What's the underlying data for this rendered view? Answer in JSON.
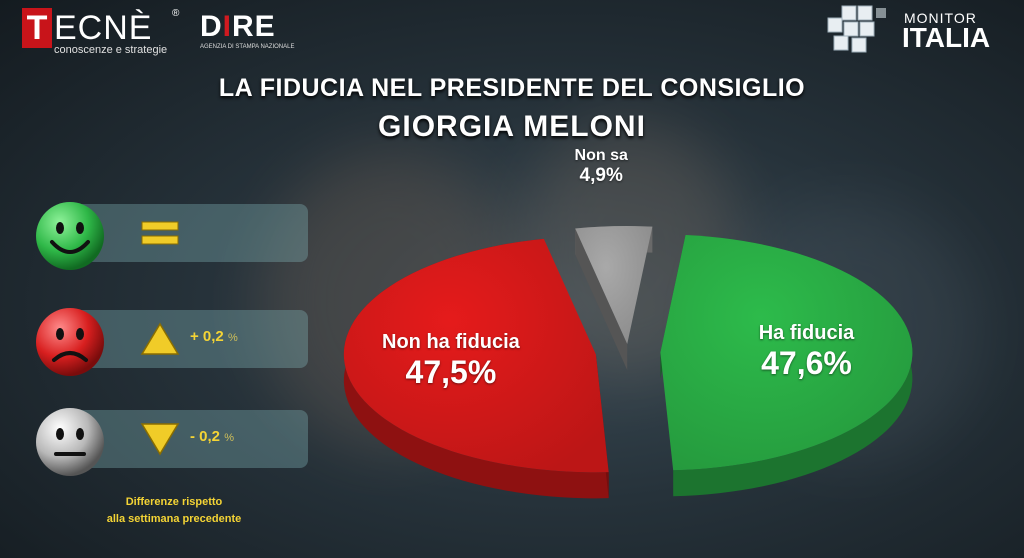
{
  "logos": {
    "tecne": {
      "first": "T",
      "rest": "ECNÈ",
      "reg": "®",
      "tagline": "conoscenze e strategie"
    },
    "dire": {
      "word_a": "D",
      "word_i": "I",
      "word_b": "RE",
      "tagline": "AGENZIA DI STAMPA NAZIONALE"
    },
    "monitor": {
      "line1": "MONITOR",
      "line2": "ITALIA"
    }
  },
  "title": {
    "line1": "LA FIDUCIA NEL PRESIDENTE DEL CONSIGLIO",
    "line2": "GIORGIA MELONI"
  },
  "legend": [
    {
      "face": "smile-green",
      "mark": "equal",
      "delta": "",
      "color": "#2db54a"
    },
    {
      "face": "frown-red",
      "mark": "up",
      "delta": "+ 0,2",
      "unit": "%",
      "color": "#d92020"
    },
    {
      "face": "neutral-grey",
      "mark": "down",
      "delta": "- 0,2",
      "unit": "%",
      "color": "#b9b9b9"
    }
  ],
  "legend_note": {
    "line1": "Differenze rispetto",
    "line2": "alla settimana precedente"
  },
  "chart_data": {
    "type": "pie",
    "title": "LA FIDUCIA NEL PRESIDENTE DEL CONSIGLIO GIORGIA MELONI",
    "slices": [
      {
        "label": "Ha fiducia",
        "value": 47.6,
        "display": "47,6%",
        "color": "#2dbb4b"
      },
      {
        "label": "Non ha fiducia",
        "value": 47.5,
        "display": "47,5%",
        "color": "#e51b1b"
      },
      {
        "label": "Non sa",
        "value": 4.9,
        "display": "4,9%",
        "color": "#a9a9a9"
      }
    ]
  }
}
